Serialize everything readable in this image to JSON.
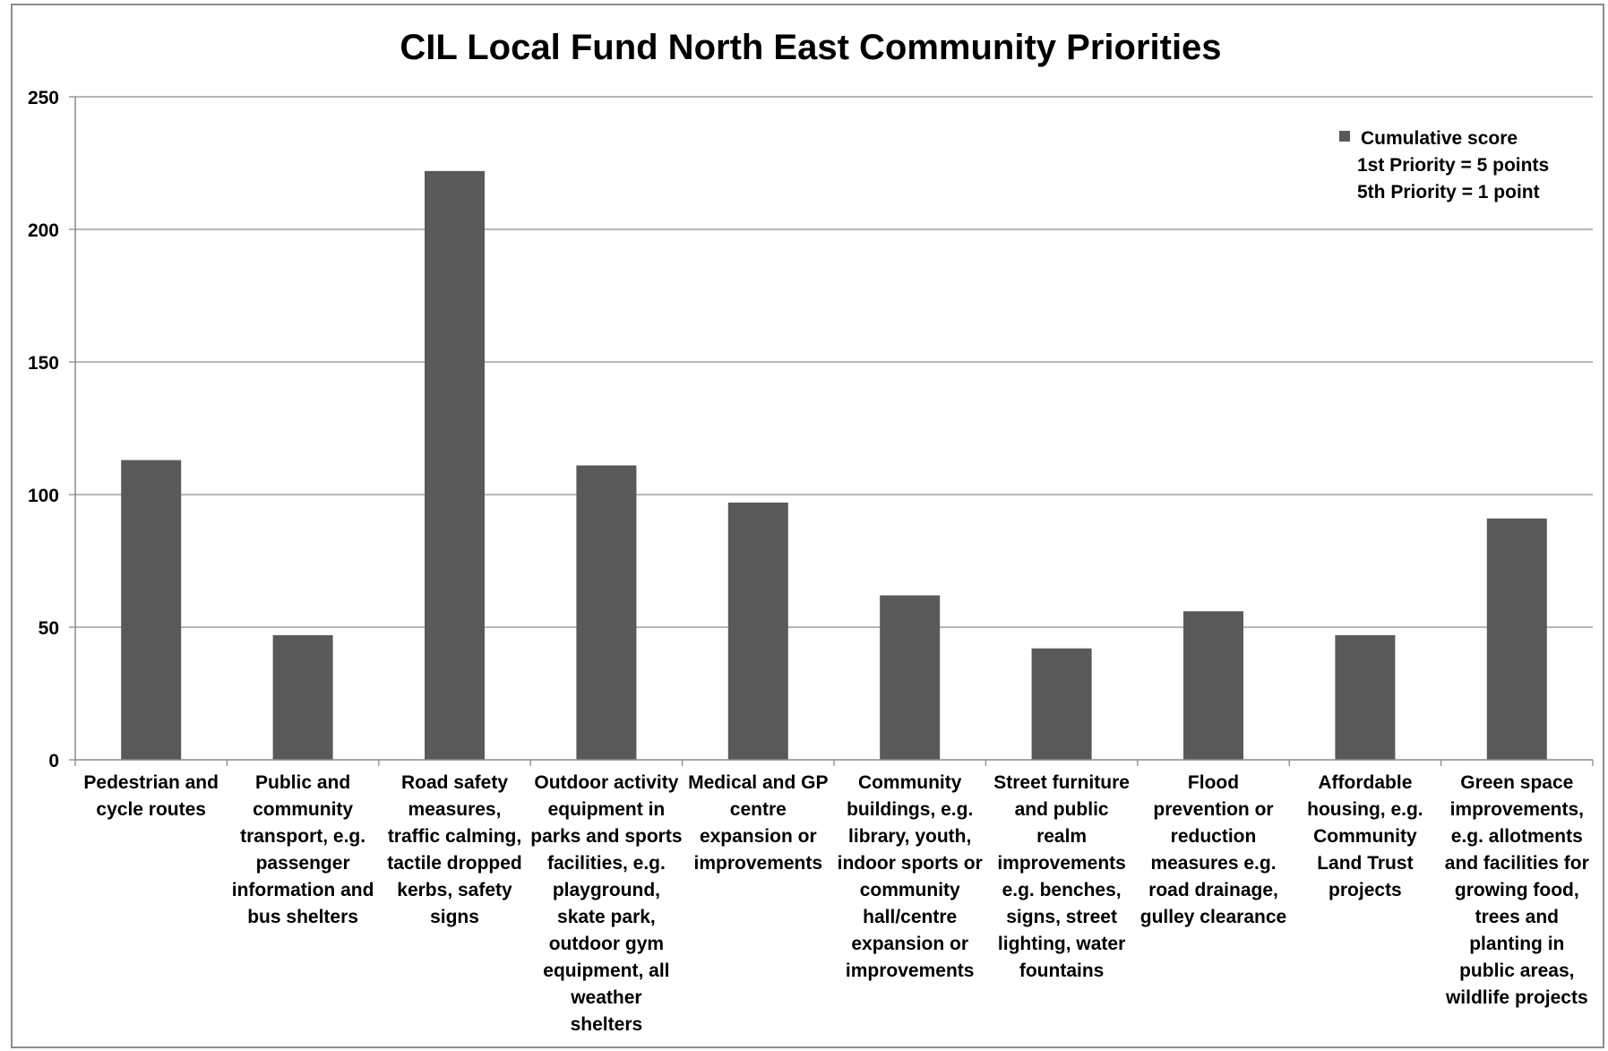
{
  "chart_data": {
    "type": "bar",
    "title": "CIL Local Fund North East Community Priorities",
    "xlabel": "",
    "ylabel": "",
    "ylim": [
      0,
      250
    ],
    "yticks": [
      "0",
      "50",
      "100",
      "150",
      "200",
      "250"
    ],
    "grid": true,
    "legend_position": "top-right",
    "bar_color": "#595959",
    "categories": [
      [
        "Pedestrian and",
        "cycle routes"
      ],
      [
        "Public and",
        "community",
        "transport, e.g.",
        "passenger",
        "information and",
        "bus shelters"
      ],
      [
        "Road safety",
        "measures,",
        "traffic calming,",
        "tactile dropped",
        "kerbs, safety",
        "signs"
      ],
      [
        "Outdoor activity",
        "equipment in",
        "parks and sports",
        "facilities, e.g.",
        "playground,",
        "skate park,",
        "outdoor gym",
        "equipment, all",
        "weather",
        "shelters"
      ],
      [
        "Medical and GP",
        "centre",
        "expansion or",
        "improvements"
      ],
      [
        "Community",
        "buildings, e.g.",
        "library, youth,",
        "indoor sports or",
        "community",
        "hall/centre",
        "expansion or",
        "improvements"
      ],
      [
        "Street furniture",
        "and public",
        "realm",
        "improvements",
        "e.g. benches,",
        "signs, street",
        "lighting, water",
        "fountains"
      ],
      [
        "Flood",
        "prevention or",
        "reduction",
        "measures e.g.",
        "road drainage,",
        "gulley clearance"
      ],
      [
        "Affordable",
        "housing, e.g.",
        "Community",
        "Land Trust",
        "projects"
      ],
      [
        "Green space",
        "improvements,",
        "e.g. allotments",
        "and facilities for",
        "growing food,",
        "trees and",
        "planting in",
        "public areas,",
        "wildlife projects"
      ]
    ],
    "series": [
      {
        "name": "Cumulative score",
        "values": [
          113,
          47,
          222,
          111,
          97,
          62,
          42,
          56,
          47,
          91
        ]
      }
    ],
    "legend": {
      "entries": [
        "Cumulative score"
      ],
      "notes": [
        "1st Priority = 5 points",
        "5th Priority = 1 point"
      ]
    }
  }
}
